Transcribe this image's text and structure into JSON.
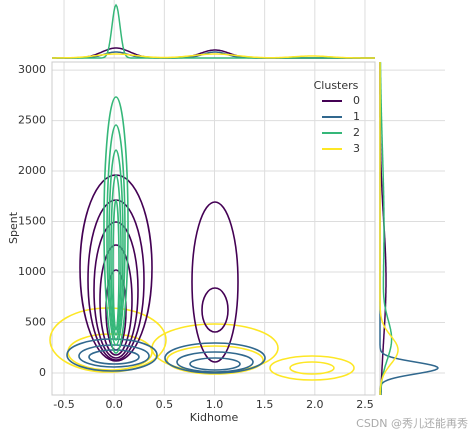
{
  "chart_data": {
    "type": "kde",
    "x_label": "Kidhome",
    "y_label": "Spent",
    "xlim": [
      -0.62,
      2.6
    ],
    "xticks": [
      -0.5,
      0.0,
      0.5,
      1.0,
      1.5,
      2.0,
      2.5
    ],
    "ylim": [
      -218,
      3080
    ],
    "yticks": [
      0,
      500,
      1000,
      1500,
      2000,
      2500,
      3000
    ],
    "grid": true,
    "legend_title": "Clusters",
    "legend_position": "upper right",
    "series": [
      {
        "name": "0",
        "color": "#440154"
      },
      {
        "name": "1",
        "color": "#31688e"
      },
      {
        "name": "2",
        "color": "#35b779"
      },
      {
        "name": "3",
        "color": "#fde725"
      }
    ],
    "watermark": "CSDN @秀儿还能再秀"
  }
}
